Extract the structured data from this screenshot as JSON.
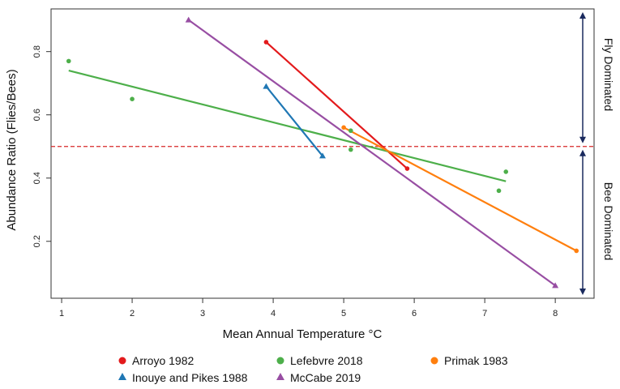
{
  "chart_data": {
    "type": "scatter",
    "xlabel": "Mean Annual Temperature °C",
    "ylabel": "Abundance Ratio (Flies/Bees)",
    "xlim": [
      0.85,
      8.55
    ],
    "ylim": [
      0.02,
      0.935
    ],
    "x_ticks": [
      1,
      2,
      3,
      4,
      5,
      6,
      7,
      8
    ],
    "y_ticks": [
      0.2,
      0.4,
      0.6,
      0.8
    ],
    "reference_line": {
      "y": 0.5,
      "color": "#d62728",
      "style": "dashed"
    },
    "regions": [
      {
        "label": "Fly Dominated",
        "from": 0.5,
        "to": 0.935
      },
      {
        "label": "Bee Dominated",
        "from": 0.02,
        "to": 0.5
      }
    ],
    "region_arrow_color": "#1a2a5e",
    "series": [
      {
        "name": "Arroyo 1982",
        "color": "#e31a1c",
        "marker": "circle",
        "points": [
          [
            3.9,
            0.83
          ],
          [
            5.9,
            0.43
          ]
        ],
        "fit": [
          [
            3.9,
            0.83
          ],
          [
            5.9,
            0.43
          ]
        ]
      },
      {
        "name": "Lefebvre 2018",
        "color": "#4daf4a",
        "marker": "circle",
        "points": [
          [
            1.1,
            0.77
          ],
          [
            2.0,
            0.65
          ],
          [
            5.1,
            0.49
          ],
          [
            5.1,
            0.55
          ],
          [
            7.2,
            0.36
          ],
          [
            7.3,
            0.42
          ]
        ],
        "fit": [
          [
            1.1,
            0.74
          ],
          [
            7.3,
            0.39
          ]
        ]
      },
      {
        "name": "Primak 1983",
        "color": "#ff7f0e",
        "marker": "circle",
        "points": [
          [
            5.0,
            0.56
          ],
          [
            8.3,
            0.17
          ]
        ],
        "fit": [
          [
            5.0,
            0.56
          ],
          [
            8.3,
            0.17
          ]
        ]
      },
      {
        "name": "Inouye and Pikes 1988",
        "color": "#1f77b4",
        "marker": "triangle",
        "points": [
          [
            3.9,
            0.69
          ],
          [
            4.7,
            0.47
          ]
        ],
        "fit": [
          [
            3.9,
            0.69
          ],
          [
            4.7,
            0.47
          ]
        ]
      },
      {
        "name": "McCabe 2019",
        "color": "#984ea3",
        "marker": "triangle",
        "points": [
          [
            2.8,
            0.9
          ],
          [
            8.0,
            0.06
          ]
        ],
        "fit": [
          [
            2.8,
            0.9
          ],
          [
            8.0,
            0.06
          ]
        ]
      }
    ],
    "legend_position": "bottom"
  }
}
